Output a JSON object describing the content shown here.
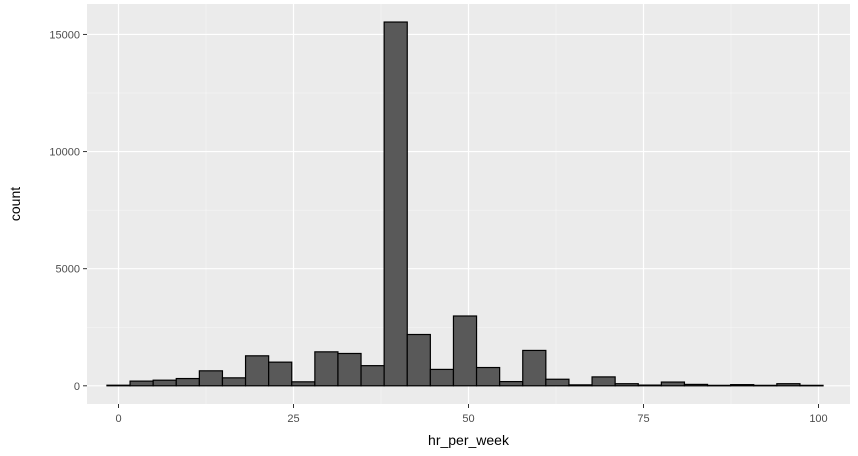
{
  "chart_data": {
    "type": "bar",
    "xlabel": "hr_per_week",
    "ylabel": "count",
    "xlim": [
      -4.5,
      104.5
    ],
    "ylim": [
      -777,
      16300
    ],
    "bin_width": 3.3,
    "x_ticks": [
      0,
      25,
      50,
      75,
      100
    ],
    "x_tick_labels": [
      "0",
      "25",
      "50",
      "75",
      "100"
    ],
    "y_ticks": [
      0,
      5000,
      10000,
      15000
    ],
    "y_tick_labels": [
      "0",
      "5000",
      "10000",
      "15000"
    ],
    "minor_x_ticks": [
      12.5,
      37.5,
      62.5,
      87.5
    ],
    "minor_y_ticks": [
      2500,
      7500,
      12500
    ],
    "grid": true,
    "bin_centers": [
      0.0,
      3.3,
      6.6,
      9.9,
      13.2,
      16.5,
      19.8,
      23.1,
      26.4,
      29.7,
      33.0,
      36.3,
      39.6,
      42.9,
      46.2,
      49.5,
      52.8,
      56.1,
      59.4,
      62.7,
      66.0,
      69.3,
      72.6,
      75.9,
      79.2,
      82.5,
      85.8,
      89.1,
      92.4,
      95.7,
      99.0
    ],
    "values": [
      25,
      200,
      240,
      310,
      640,
      340,
      1280,
      1010,
      170,
      1450,
      1380,
      860,
      15530,
      2190,
      700,
      2980,
      780,
      180,
      1510,
      280,
      40,
      380,
      90,
      30,
      160,
      60,
      20,
      50,
      20,
      90,
      20
    ],
    "colors": {
      "panel": "#ebebeb",
      "grid_major": "#ffffff",
      "bar_fill": "#595959",
      "bar_stroke": "#000000"
    }
  }
}
